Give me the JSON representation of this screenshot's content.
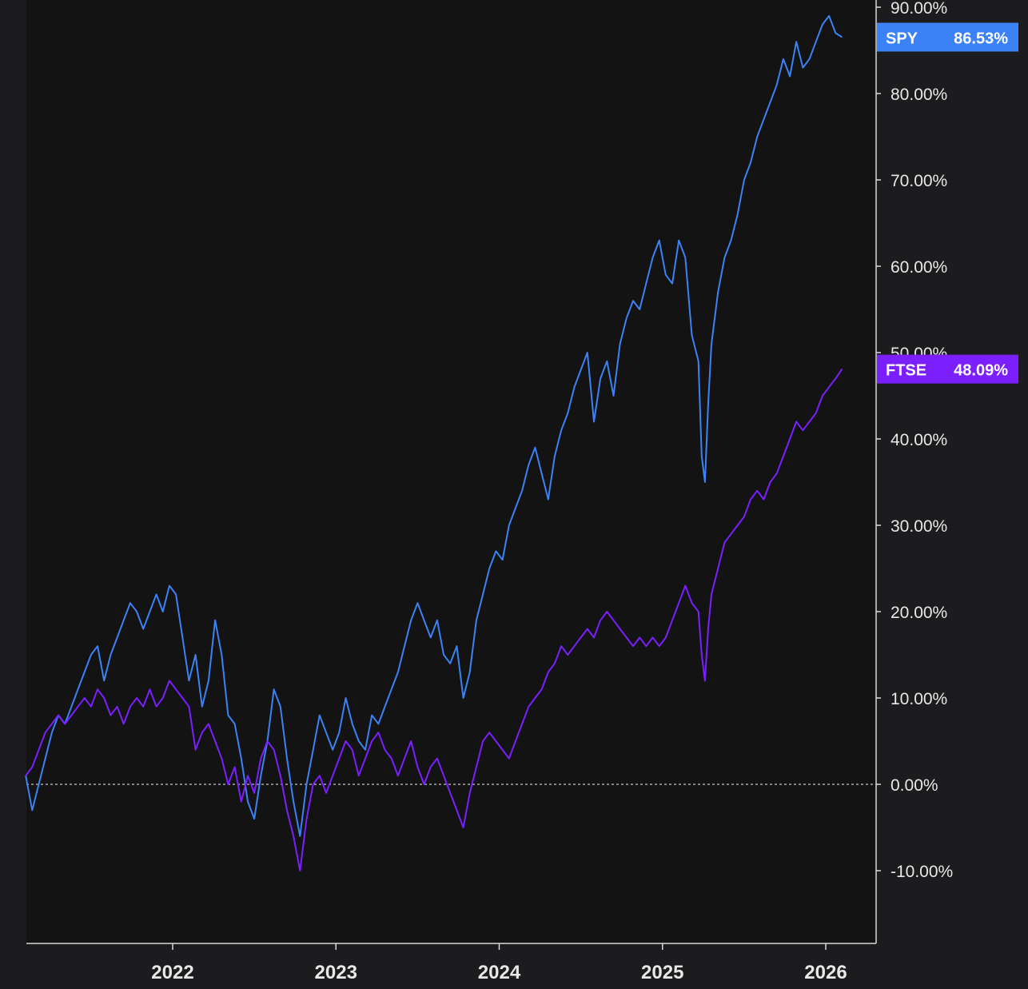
{
  "chart_data": {
    "type": "line",
    "title": "",
    "xlabel": "",
    "ylabel": "",
    "x_ticks": [
      "2022",
      "2023",
      "2024",
      "2025",
      "2026"
    ],
    "x_tick_values": [
      2022.0,
      2023.0,
      2024.0,
      2025.0,
      2026.0
    ],
    "x_range": [
      2021.1,
      2026.3
    ],
    "y_ticks": [
      "90.00%",
      "80.00%",
      "70.00%",
      "60.00%",
      "50.00%",
      "40.00%",
      "30.00%",
      "20.00%",
      "10.00%",
      "0.00%",
      "-10.00%"
    ],
    "y_tick_values": [
      90,
      80,
      70,
      60,
      50,
      40,
      30,
      20,
      10,
      0,
      -10
    ],
    "ylim": [
      -18,
      91
    ],
    "zero_line": true,
    "series": [
      {
        "name": "SPY",
        "last_value_label": "86.53%",
        "color": "#3b82f6",
        "points": [
          [
            2021.1,
            1
          ],
          [
            2021.14,
            -3
          ],
          [
            2021.18,
            0
          ],
          [
            2021.22,
            3
          ],
          [
            2021.26,
            6
          ],
          [
            2021.3,
            8
          ],
          [
            2021.34,
            7
          ],
          [
            2021.38,
            9
          ],
          [
            2021.42,
            11
          ],
          [
            2021.46,
            13
          ],
          [
            2021.5,
            15
          ],
          [
            2021.54,
            16
          ],
          [
            2021.58,
            12
          ],
          [
            2021.62,
            15
          ],
          [
            2021.66,
            17
          ],
          [
            2021.7,
            19
          ],
          [
            2021.74,
            21
          ],
          [
            2021.78,
            20
          ],
          [
            2021.82,
            18
          ],
          [
            2021.86,
            20
          ],
          [
            2021.9,
            22
          ],
          [
            2021.94,
            20
          ],
          [
            2021.98,
            23
          ],
          [
            2022.02,
            22
          ],
          [
            2022.06,
            17
          ],
          [
            2022.1,
            12
          ],
          [
            2022.14,
            15
          ],
          [
            2022.18,
            9
          ],
          [
            2022.22,
            12
          ],
          [
            2022.26,
            19
          ],
          [
            2022.3,
            15
          ],
          [
            2022.34,
            8
          ],
          [
            2022.38,
            7
          ],
          [
            2022.42,
            3
          ],
          [
            2022.46,
            -2
          ],
          [
            2022.5,
            -4
          ],
          [
            2022.54,
            1
          ],
          [
            2022.58,
            5
          ],
          [
            2022.62,
            11
          ],
          [
            2022.66,
            9
          ],
          [
            2022.7,
            3
          ],
          [
            2022.74,
            -2
          ],
          [
            2022.78,
            -6
          ],
          [
            2022.82,
            0
          ],
          [
            2022.86,
            4
          ],
          [
            2022.9,
            8
          ],
          [
            2022.94,
            6
          ],
          [
            2022.98,
            4
          ],
          [
            2023.02,
            6
          ],
          [
            2023.06,
            10
          ],
          [
            2023.1,
            7
          ],
          [
            2023.14,
            5
          ],
          [
            2023.18,
            4
          ],
          [
            2023.22,
            8
          ],
          [
            2023.26,
            7
          ],
          [
            2023.3,
            9
          ],
          [
            2023.34,
            11
          ],
          [
            2023.38,
            13
          ],
          [
            2023.42,
            16
          ],
          [
            2023.46,
            19
          ],
          [
            2023.5,
            21
          ],
          [
            2023.54,
            19
          ],
          [
            2023.58,
            17
          ],
          [
            2023.62,
            19
          ],
          [
            2023.66,
            15
          ],
          [
            2023.7,
            14
          ],
          [
            2023.74,
            16
          ],
          [
            2023.78,
            10
          ],
          [
            2023.82,
            13
          ],
          [
            2023.86,
            19
          ],
          [
            2023.9,
            22
          ],
          [
            2023.94,
            25
          ],
          [
            2023.98,
            27
          ],
          [
            2024.02,
            26
          ],
          [
            2024.06,
            30
          ],
          [
            2024.1,
            32
          ],
          [
            2024.14,
            34
          ],
          [
            2024.18,
            37
          ],
          [
            2024.22,
            39
          ],
          [
            2024.26,
            36
          ],
          [
            2024.3,
            33
          ],
          [
            2024.34,
            38
          ],
          [
            2024.38,
            41
          ],
          [
            2024.42,
            43
          ],
          [
            2024.46,
            46
          ],
          [
            2024.5,
            48
          ],
          [
            2024.54,
            50
          ],
          [
            2024.58,
            42
          ],
          [
            2024.62,
            47
          ],
          [
            2024.66,
            49
          ],
          [
            2024.7,
            45
          ],
          [
            2024.74,
            51
          ],
          [
            2024.78,
            54
          ],
          [
            2024.82,
            56
          ],
          [
            2024.86,
            55
          ],
          [
            2024.9,
            58
          ],
          [
            2024.94,
            61
          ],
          [
            2024.98,
            63
          ],
          [
            2025.02,
            59
          ],
          [
            2025.06,
            58
          ],
          [
            2025.1,
            63
          ],
          [
            2025.14,
            61
          ],
          [
            2025.18,
            52
          ],
          [
            2025.22,
            49
          ],
          [
            2025.24,
            38
          ],
          [
            2025.26,
            35
          ],
          [
            2025.28,
            44
          ],
          [
            2025.3,
            51
          ],
          [
            2025.34,
            57
          ],
          [
            2025.38,
            61
          ],
          [
            2025.42,
            63
          ],
          [
            2025.46,
            66
          ],
          [
            2025.5,
            70
          ],
          [
            2025.54,
            72
          ],
          [
            2025.58,
            75
          ],
          [
            2025.62,
            77
          ],
          [
            2025.66,
            79
          ],
          [
            2025.7,
            81
          ],
          [
            2025.74,
            84
          ],
          [
            2025.78,
            82
          ],
          [
            2025.82,
            86
          ],
          [
            2025.86,
            83
          ],
          [
            2025.9,
            84
          ],
          [
            2025.94,
            86
          ],
          [
            2025.98,
            88
          ],
          [
            2026.02,
            89
          ],
          [
            2026.06,
            87
          ],
          [
            2026.1,
            86.53
          ]
        ]
      },
      {
        "name": "FTSE",
        "last_value_label": "48.09%",
        "color": "#7b1fff",
        "points": [
          [
            2021.1,
            1
          ],
          [
            2021.14,
            2
          ],
          [
            2021.18,
            4
          ],
          [
            2021.22,
            6
          ],
          [
            2021.26,
            7
          ],
          [
            2021.3,
            8
          ],
          [
            2021.34,
            7
          ],
          [
            2021.38,
            8
          ],
          [
            2021.42,
            9
          ],
          [
            2021.46,
            10
          ],
          [
            2021.5,
            9
          ],
          [
            2021.54,
            11
          ],
          [
            2021.58,
            10
          ],
          [
            2021.62,
            8
          ],
          [
            2021.66,
            9
          ],
          [
            2021.7,
            7
          ],
          [
            2021.74,
            9
          ],
          [
            2021.78,
            10
          ],
          [
            2021.82,
            9
          ],
          [
            2021.86,
            11
          ],
          [
            2021.9,
            9
          ],
          [
            2021.94,
            10
          ],
          [
            2021.98,
            12
          ],
          [
            2022.02,
            11
          ],
          [
            2022.06,
            10
          ],
          [
            2022.1,
            9
          ],
          [
            2022.14,
            4
          ],
          [
            2022.18,
            6
          ],
          [
            2022.22,
            7
          ],
          [
            2022.26,
            5
          ],
          [
            2022.3,
            3
          ],
          [
            2022.34,
            0
          ],
          [
            2022.38,
            2
          ],
          [
            2022.42,
            -2
          ],
          [
            2022.46,
            1
          ],
          [
            2022.5,
            -1
          ],
          [
            2022.54,
            3
          ],
          [
            2022.58,
            5
          ],
          [
            2022.62,
            4
          ],
          [
            2022.66,
            1
          ],
          [
            2022.7,
            -3
          ],
          [
            2022.74,
            -6
          ],
          [
            2022.78,
            -10
          ],
          [
            2022.82,
            -4
          ],
          [
            2022.86,
            0
          ],
          [
            2022.9,
            1
          ],
          [
            2022.94,
            -1
          ],
          [
            2022.98,
            1
          ],
          [
            2023.02,
            3
          ],
          [
            2023.06,
            5
          ],
          [
            2023.1,
            4
          ],
          [
            2023.14,
            1
          ],
          [
            2023.18,
            3
          ],
          [
            2023.22,
            5
          ],
          [
            2023.26,
            6
          ],
          [
            2023.3,
            4
          ],
          [
            2023.34,
            3
          ],
          [
            2023.38,
            1
          ],
          [
            2023.42,
            3
          ],
          [
            2023.46,
            5
          ],
          [
            2023.5,
            2
          ],
          [
            2023.54,
            0
          ],
          [
            2023.58,
            2
          ],
          [
            2023.62,
            3
          ],
          [
            2023.66,
            1
          ],
          [
            2023.7,
            -1
          ],
          [
            2023.74,
            -3
          ],
          [
            2023.78,
            -5
          ],
          [
            2023.82,
            -1
          ],
          [
            2023.86,
            2
          ],
          [
            2023.9,
            5
          ],
          [
            2023.94,
            6
          ],
          [
            2023.98,
            5
          ],
          [
            2024.02,
            4
          ],
          [
            2024.06,
            3
          ],
          [
            2024.1,
            5
          ],
          [
            2024.14,
            7
          ],
          [
            2024.18,
            9
          ],
          [
            2024.22,
            10
          ],
          [
            2024.26,
            11
          ],
          [
            2024.3,
            13
          ],
          [
            2024.34,
            14
          ],
          [
            2024.38,
            16
          ],
          [
            2024.42,
            15
          ],
          [
            2024.46,
            16
          ],
          [
            2024.5,
            17
          ],
          [
            2024.54,
            18
          ],
          [
            2024.58,
            17
          ],
          [
            2024.62,
            19
          ],
          [
            2024.66,
            20
          ],
          [
            2024.7,
            19
          ],
          [
            2024.74,
            18
          ],
          [
            2024.78,
            17
          ],
          [
            2024.82,
            16
          ],
          [
            2024.86,
            17
          ],
          [
            2024.9,
            16
          ],
          [
            2024.94,
            17
          ],
          [
            2024.98,
            16
          ],
          [
            2025.02,
            17
          ],
          [
            2025.06,
            19
          ],
          [
            2025.1,
            21
          ],
          [
            2025.14,
            23
          ],
          [
            2025.18,
            21
          ],
          [
            2025.22,
            20
          ],
          [
            2025.24,
            15
          ],
          [
            2025.26,
            12
          ],
          [
            2025.28,
            18
          ],
          [
            2025.3,
            22
          ],
          [
            2025.34,
            25
          ],
          [
            2025.38,
            28
          ],
          [
            2025.42,
            29
          ],
          [
            2025.46,
            30
          ],
          [
            2025.5,
            31
          ],
          [
            2025.54,
            33
          ],
          [
            2025.58,
            34
          ],
          [
            2025.62,
            33
          ],
          [
            2025.66,
            35
          ],
          [
            2025.7,
            36
          ],
          [
            2025.74,
            38
          ],
          [
            2025.78,
            40
          ],
          [
            2025.82,
            42
          ],
          [
            2025.86,
            41
          ],
          [
            2025.9,
            42
          ],
          [
            2025.94,
            43
          ],
          [
            2025.98,
            45
          ],
          [
            2026.02,
            46
          ],
          [
            2026.06,
            47
          ],
          [
            2026.1,
            48.09
          ]
        ]
      }
    ]
  }
}
